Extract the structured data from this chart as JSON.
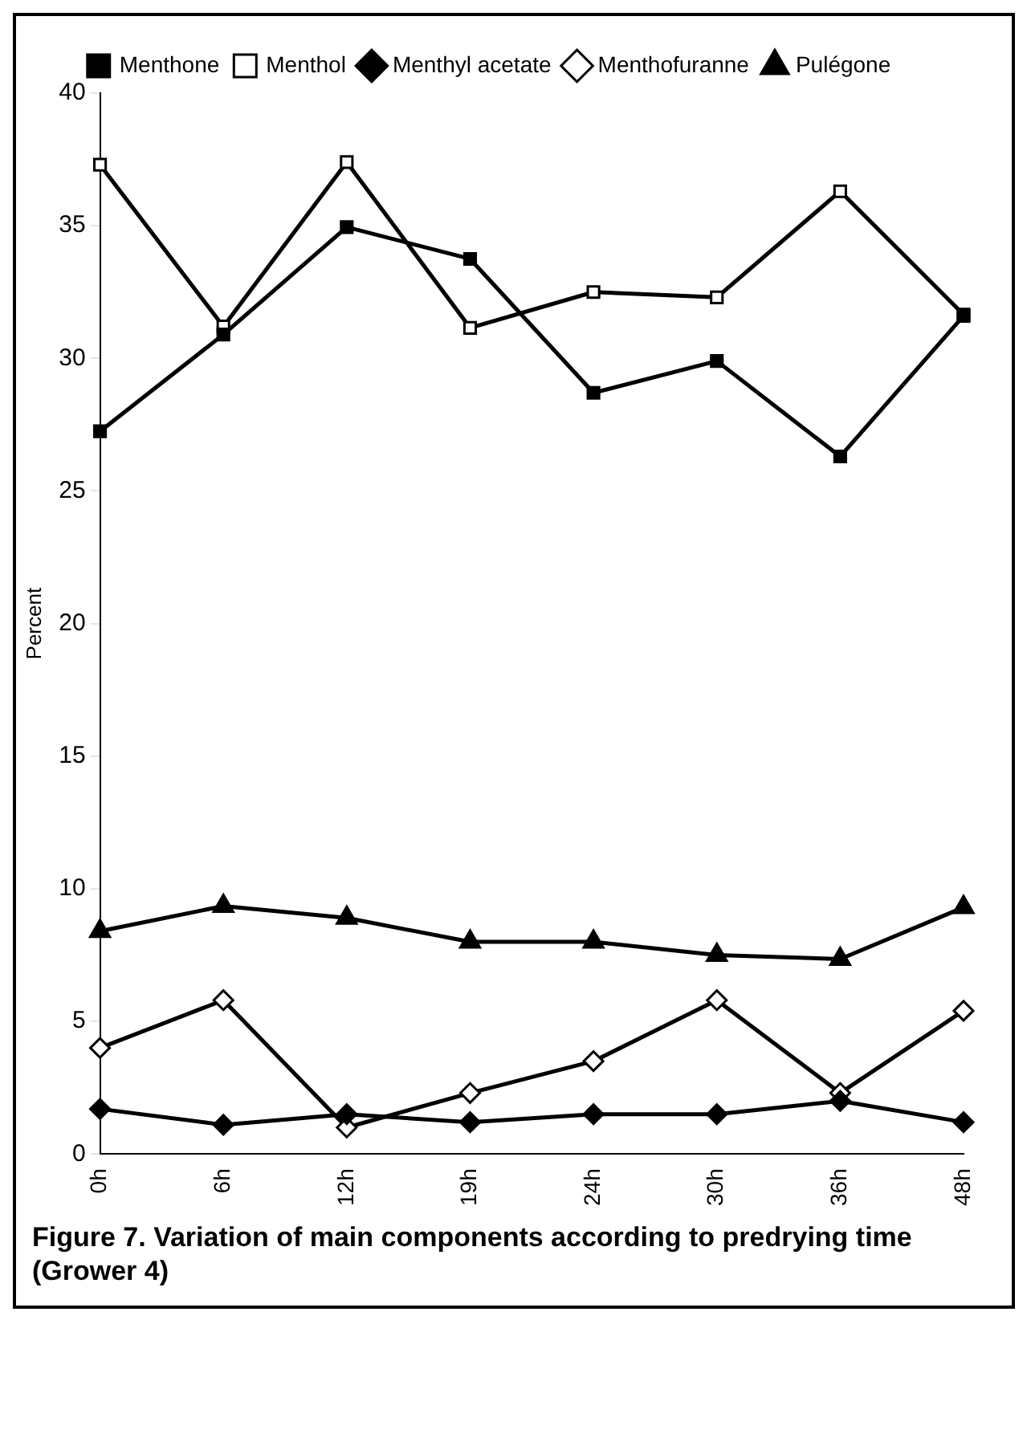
{
  "chart_data": {
    "type": "line",
    "title": "Figure 7. Variation of main components according to predrying time (Grower 4)",
    "ylabel": "Percent",
    "categories": [
      "0h",
      "6h",
      "12h",
      "19h",
      "24h",
      "30h",
      "36h",
      "48h"
    ],
    "series": [
      {
        "name": "Menthone",
        "color": "#000000",
        "marker": "square",
        "values": [
          27.25,
          30.9,
          34.95,
          33.75,
          28.7,
          29.9,
          26.3,
          31.6
        ]
      },
      {
        "name": "Menthol",
        "color": "#ffffff",
        "marker": "square",
        "values": [
          37.3,
          31.2,
          37.4,
          31.15,
          32.5,
          32.3,
          36.3,
          31.65
        ]
      },
      {
        "name": "Menthyl acetate",
        "color": "#000000",
        "marker": "diamond",
        "values": [
          1.7,
          1.1,
          1.5,
          1.2,
          1.5,
          1.5,
          2.0,
          1.2
        ]
      },
      {
        "name": "Menthofuranne",
        "color": "#ffffff",
        "marker": "diamond",
        "values": [
          4.0,
          5.8,
          1.0,
          2.3,
          3.5,
          5.8,
          2.3,
          5.4
        ]
      },
      {
        "name": "Pulégone",
        "color": "#000000",
        "marker": "triangle",
        "values": [
          8.4,
          9.35,
          8.9,
          8.0,
          8.0,
          7.5,
          7.35,
          9.3
        ]
      }
    ],
    "ylim": [
      0,
      40
    ],
    "yticks": [
      0,
      5,
      10,
      15,
      20,
      25,
      30,
      35,
      40
    ],
    "grid": false,
    "legend": "top",
    "line_style": "solid"
  }
}
